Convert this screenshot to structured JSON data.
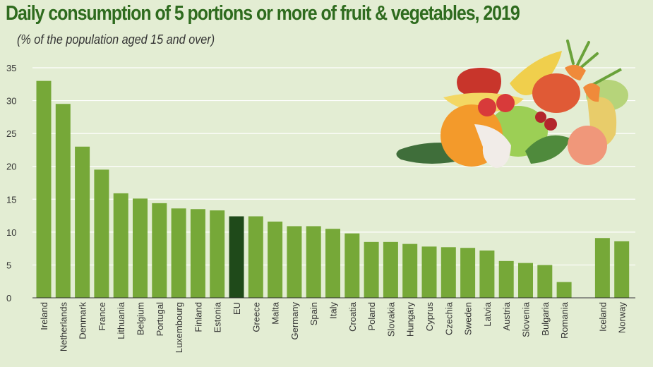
{
  "chart_data": {
    "type": "bar",
    "title": "Daily consumption of 5 portions or more of fruit & vegetables, 2019",
    "subtitle": "(% of  the population aged 15 and over)",
    "xlabel": "",
    "ylabel": "",
    "ylim": [
      0,
      35
    ],
    "yticks": [
      0,
      5,
      10,
      15,
      20,
      25,
      30,
      35
    ],
    "grid": true,
    "highlight": "EU",
    "colors": {
      "bar": "#76a838",
      "highlight": "#1f4a1a",
      "grid": "#ffffff",
      "title": "#2e6b1e"
    },
    "categories": [
      "Ireland",
      "Netherlands",
      "Denmark",
      "France",
      "Lithuania",
      "Belgium",
      "Portugal",
      "Luxembourg",
      "Finland",
      "Estonia",
      "EU",
      "Greece",
      "Malta",
      "Germany",
      "Spain",
      "Italy",
      "Croatia",
      "Poland",
      "Slovakia",
      "Hungary",
      "Cyprus",
      "Czechia",
      "Sweden",
      "Latvia",
      "Austria",
      "Slovenia",
      "Bulgaria",
      "Romania",
      "Iceland",
      "Norway"
    ],
    "values": [
      33.0,
      29.5,
      23.0,
      19.5,
      15.9,
      15.1,
      14.4,
      13.6,
      13.5,
      13.3,
      12.4,
      12.4,
      11.6,
      10.9,
      10.9,
      10.5,
      9.8,
      8.5,
      8.5,
      8.2,
      7.8,
      7.7,
      7.6,
      7.2,
      5.6,
      5.3,
      5.0,
      2.4,
      9.1,
      8.6
    ]
  },
  "decoration": {
    "illustration": "fruit-and-vegetables-illustration"
  }
}
